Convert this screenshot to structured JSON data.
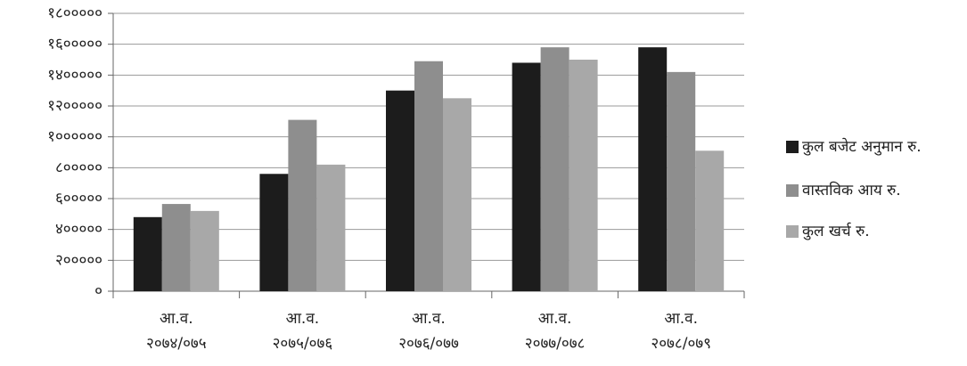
{
  "chart_data": {
    "type": "bar",
    "categories": [
      "आ.व. २०७४/०७५",
      "आ.व. २०७५/०७६",
      "आ.व. २०७६/०७७",
      "आ.व. २०७७/०७८",
      "आ.व. २०७८/०७९"
    ],
    "series": [
      {
        "name": "कुल बजेट अनुमान रु.",
        "color": "#1c1c1c",
        "values": [
          480000,
          760000,
          1300000,
          1480000,
          1580000
        ]
      },
      {
        "name": "वास्तविक आय रु.",
        "color": "#8e8e8e",
        "values": [
          565000,
          1110000,
          1490000,
          1580000,
          1420000
        ]
      },
      {
        "name": "कुल खर्च रु.",
        "color": "#a8a8a8",
        "values": [
          520000,
          820000,
          1250000,
          1500000,
          910000
        ]
      }
    ],
    "ylim": [
      0,
      1800000
    ],
    "yticks": [
      {
        "value": 0,
        "label": "०"
      },
      {
        "value": 200000,
        "label": "२०००००"
      },
      {
        "value": 400000,
        "label": "४०००००"
      },
      {
        "value": 600000,
        "label": "६०००००"
      },
      {
        "value": 800000,
        "label": "८०००००"
      },
      {
        "value": 1000000,
        "label": "१००००००"
      },
      {
        "value": 1200000,
        "label": "१२०००००"
      },
      {
        "value": 1400000,
        "label": "१४०००००"
      },
      {
        "value": 1600000,
        "label": "१६०००००"
      },
      {
        "value": 1800000,
        "label": "१८०००००"
      }
    ],
    "grid": true,
    "legend": "right"
  }
}
